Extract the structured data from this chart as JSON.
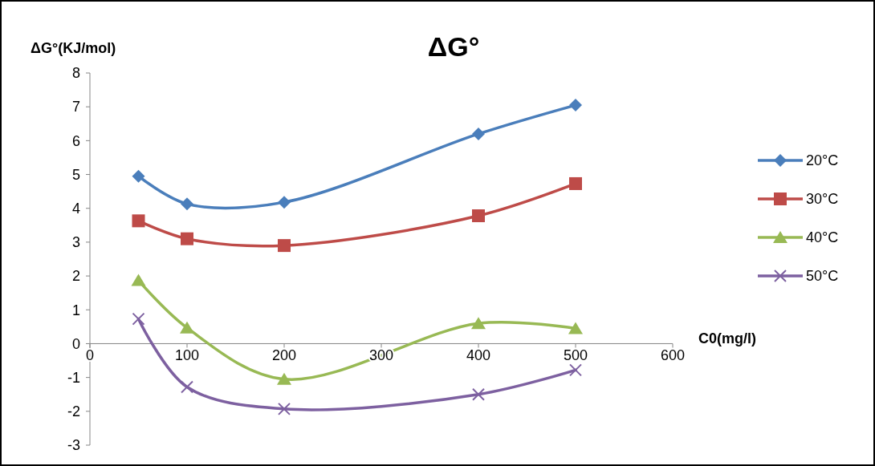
{
  "chart_data": {
    "type": "line",
    "title": "ΔG°",
    "xlabel": "C0(mg/l)",
    "ylabel": "ΔG°(KJ/mol)",
    "xlim": [
      0,
      600
    ],
    "xticks": [
      0,
      100,
      200,
      300,
      400,
      500,
      600
    ],
    "ylim": [
      -3,
      8
    ],
    "yticks": [
      -3,
      -2,
      -1,
      0,
      1,
      2,
      3,
      4,
      5,
      6,
      7,
      8
    ],
    "x": [
      50,
      100,
      200,
      400,
      500
    ],
    "grid": false,
    "legend": "right",
    "line_style": "solid",
    "series": [
      {
        "name": "20°C",
        "color": "#4a7ebb",
        "marker": "diamond",
        "values": [
          4.95,
          4.13,
          4.18,
          6.2,
          7.05
        ]
      },
      {
        "name": "30°C",
        "color": "#be4b48",
        "marker": "square",
        "values": [
          3.63,
          3.1,
          2.9,
          3.78,
          4.73
        ]
      },
      {
        "name": "40°C",
        "color": "#98b954",
        "marker": "triangle",
        "values": [
          1.87,
          0.47,
          -1.05,
          0.6,
          0.45
        ]
      },
      {
        "name": "50°C",
        "color": "#7d60a0",
        "marker": "cross",
        "values": [
          0.73,
          -1.28,
          -1.93,
          -1.5,
          -0.78
        ]
      }
    ]
  }
}
